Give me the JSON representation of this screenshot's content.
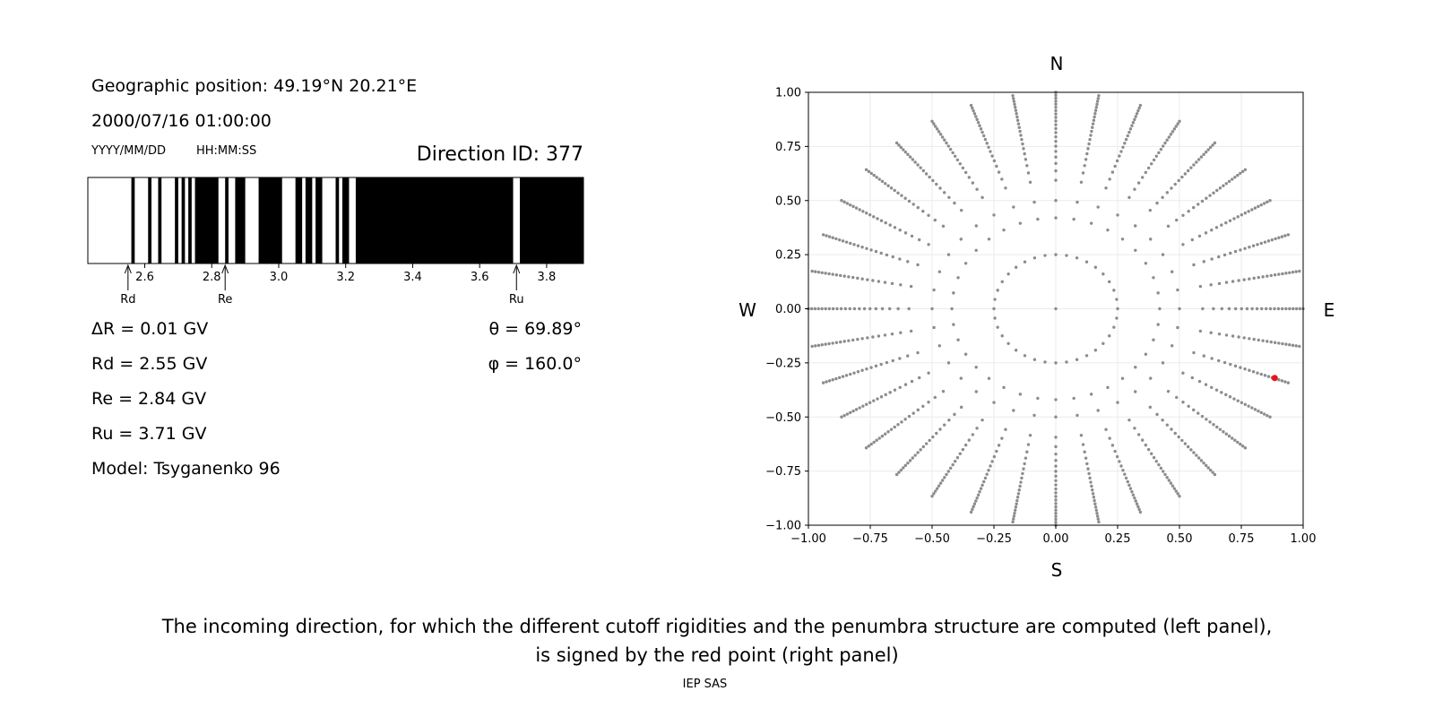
{
  "left_panel": {
    "geo_position": "Geographic position: 49.19°N 20.21°E",
    "datetime": "2000/07/16 01:00:00",
    "date_format_label": "YYYY/MM/DD",
    "time_format_label": "HH:MM:SS",
    "direction_id": "Direction ID: 377",
    "delta_r": "ΔR = 0.01 GV",
    "rd": "Rd = 2.55 GV",
    "re": "Re = 2.84 GV",
    "ru": "Ru = 3.71 GV",
    "model": "Model: Tsyganenko 96",
    "theta": "θ = 69.89°",
    "phi": "φ = 160.0°"
  },
  "caption": {
    "line1": "The incoming direction, for which the different cutoff rigidities and the penumbra structure are computed (left panel),",
    "line2": "is signed by the red point (right panel)"
  },
  "footer": "IEP SAS",
  "chart_data": [
    {
      "type": "penumbra-bar",
      "xlim": [
        2.43,
        3.91
      ],
      "ticks": [
        2.6,
        2.8,
        3.0,
        3.2,
        3.4,
        3.6,
        3.8
      ],
      "tick_labels": [
        "2.6",
        "2.8",
        "3.0",
        "3.2",
        "3.4",
        "3.6",
        "3.8"
      ],
      "markers": [
        {
          "label": "Rd",
          "value": 2.55
        },
        {
          "label": "Re",
          "value": 2.84
        },
        {
          "label": "Ru",
          "value": 3.71
        }
      ],
      "forbidden_bands": [
        [
          2.56,
          2.57
        ],
        [
          2.61,
          2.62
        ],
        [
          2.64,
          2.65
        ],
        [
          2.69,
          2.7
        ],
        [
          2.71,
          2.72
        ],
        [
          2.73,
          2.74
        ],
        [
          2.75,
          2.82
        ],
        [
          2.84,
          2.85
        ],
        [
          2.87,
          2.9
        ],
        [
          2.94,
          3.01
        ],
        [
          3.05,
          3.07
        ],
        [
          3.08,
          3.1
        ],
        [
          3.11,
          3.13
        ],
        [
          3.17,
          3.18
        ],
        [
          3.19,
          3.21
        ],
        [
          3.23,
          3.7
        ],
        [
          3.72,
          3.91
        ]
      ],
      "colors": {
        "allowed": "#ffffff",
        "forbidden": "#000000"
      }
    },
    {
      "type": "scatter",
      "xlim": [
        -1.0,
        1.0
      ],
      "ylim": [
        -1.0,
        1.0
      ],
      "x_ticks": [
        "−1.00",
        "−0.75",
        "−0.50",
        "−0.25",
        "0.00",
        "0.25",
        "0.50",
        "0.75",
        "1.00"
      ],
      "y_ticks": [
        "1.00",
        "0.75",
        "0.50",
        "0.25",
        "0.00",
        "−0.25",
        "−0.50",
        "−0.75",
        "−1.00"
      ],
      "compass": {
        "top": "N",
        "bottom": "S",
        "left": "W",
        "right": "E"
      },
      "grid": true,
      "grid_directions": {
        "zenith": [
          0,
          0
        ],
        "rings_radius": [
          0.25,
          0.42
        ],
        "rays_angles_deg_step": 10,
        "rays_radius_range": [
          0.5,
          1.0
        ],
        "ray_point_count": 22
      },
      "highlight": {
        "x": 0.885,
        "y": -0.32,
        "color": "#e8141c"
      },
      "colors": {
        "points": "#8c8c8c",
        "highlight": "#e8141c"
      }
    }
  ]
}
